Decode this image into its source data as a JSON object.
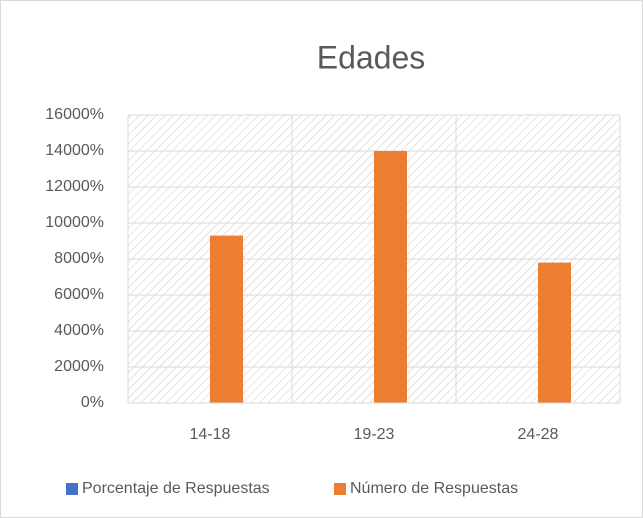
{
  "chart_data": {
    "type": "bar",
    "title": "Edades",
    "categories": [
      "14-18",
      "19-23",
      "24-28"
    ],
    "series": [
      {
        "name": "Porcentaje de Respuestas",
        "color": "#4472C4",
        "values": [
          0,
          0,
          0
        ]
      },
      {
        "name": "Número de Respuestas",
        "color": "#ED7D31",
        "values": [
          9300,
          14000,
          7800
        ]
      }
    ],
    "ylim": [
      0,
      16000
    ],
    "yticks": [
      {
        "value": 0,
        "label": "0%"
      },
      {
        "value": 2000,
        "label": "2000%"
      },
      {
        "value": 4000,
        "label": "4000%"
      },
      {
        "value": 6000,
        "label": "6000%"
      },
      {
        "value": 8000,
        "label": "8000%"
      },
      {
        "value": 10000,
        "label": "10000%"
      },
      {
        "value": 12000,
        "label": "12000%"
      },
      {
        "value": 14000,
        "label": "14000%"
      },
      {
        "value": 16000,
        "label": "16000%"
      }
    ],
    "grid": true,
    "legend": "bottom"
  }
}
